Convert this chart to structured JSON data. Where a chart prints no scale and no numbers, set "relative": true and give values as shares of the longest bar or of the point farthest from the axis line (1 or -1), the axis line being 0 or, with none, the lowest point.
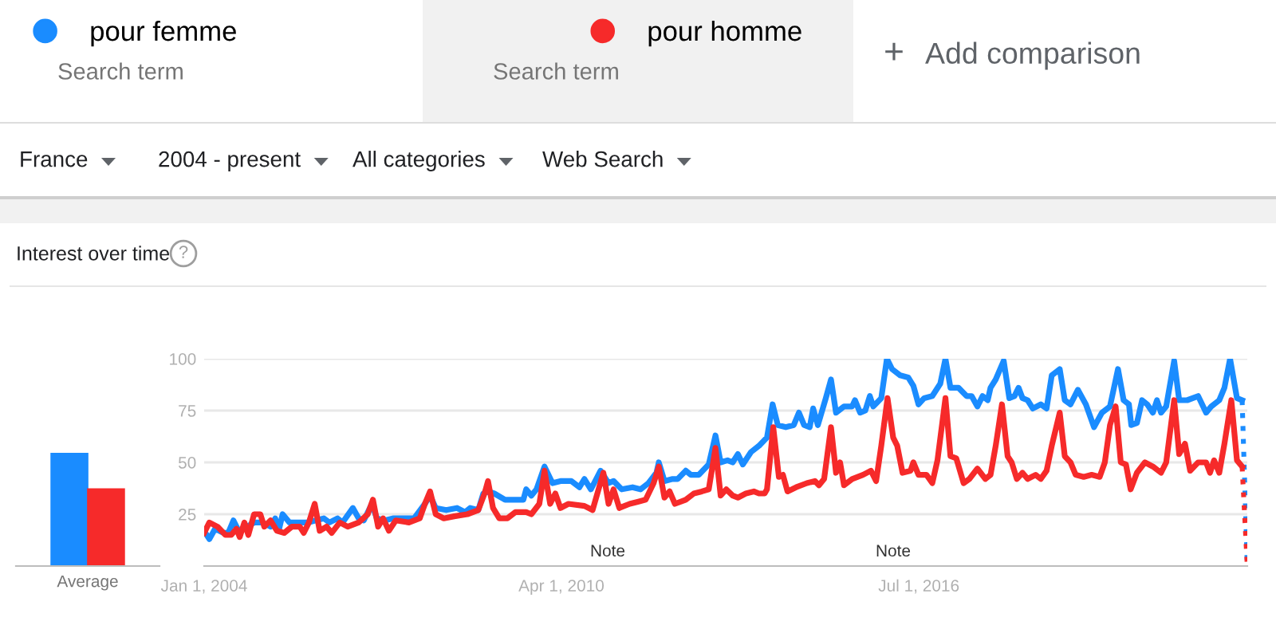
{
  "chart_data": [
    {
      "type": "other",
      "annotations": [
        "Search term",
        "Search term",
        "+",
        "Add comparison",
        "France",
        "2004 - present",
        "All categories",
        "Web Search",
        "?"
      ]
    },
    {
      "type": "bar",
      "categories": [
        "Average"
      ],
      "relative": true,
      "tick_labels": "x",
      "series": [
        {
          "color": "#1a8cff",
          "values": [
            1
          ]
        },
        {
          "color": "#f62a2a",
          "values": [
            0.68
          ]
        }
      ]
    },
    {
      "type": "line",
      "title": "Interest over time",
      "xlim": [
        "2004-01-01",
        "2022-03-30"
      ],
      "ylim": [
        0,
        100
      ],
      "yticks": [
        25,
        50,
        75,
        100
      ],
      "xticks": [
        {
          "value": "2004-01-01",
          "label": "Jan 1, 2004"
        },
        {
          "value": "2010-04-01",
          "label": "Apr 1, 2010"
        },
        {
          "value": "2016-07-01",
          "label": "Jul 1, 2016"
        }
      ],
      "grid": "y",
      "legend": "top",
      "line_style": "solid",
      "annotations": [
        "Note",
        "Note"
      ],
      "series": [
        {
          "name": "pour femme",
          "color": "#1a8cff",
          "x": [
            "2004-01-01",
            "2004-02-03",
            "2004-03-11",
            "2004-05-02",
            "2004-06-03",
            "2004-07-06",
            "2004-08-08",
            "2004-09-28",
            "2004-11-18",
            "2005-01-08",
            "2005-02-28",
            "2005-03-30",
            "2005-04-21",
            "2005-05-16",
            "2005-06-29",
            "2005-08-19",
            "2005-10-24",
            "2005-12-14",
            "2006-02-03",
            "2006-03-11",
            "2006-05-02",
            "2006-06-03",
            "2006-08-08",
            "2006-09-14",
            "2006-10-17",
            "2006-12-07",
            "2007-01-08",
            "2007-02-28",
            "2007-04-21",
            "2007-06-29",
            "2007-09-03",
            "2007-11-11",
            "2007-12-14",
            "2008-01-19",
            "2008-03-26",
            "2008-06-03",
            "2008-07-25",
            "2008-08-26",
            "2008-10-17",
            "2008-11-18",
            "2008-12-18",
            "2009-01-27",
            "2009-04-06",
            "2009-06-11",
            "2009-08-01",
            "2009-08-19",
            "2009-09-21",
            "2009-10-24",
            "2009-12-14",
            "2010-02-03",
            "2010-03-26",
            "2010-06-03",
            "2010-07-25",
            "2010-08-26",
            "2010-10-06",
            "2010-12-07",
            "2011-01-27",
            "2011-02-28",
            "2011-04-21",
            "2011-06-29",
            "2011-08-19",
            "2011-10-09",
            "2011-11-29",
            "2011-12-14",
            "2012-01-19",
            "2012-03-11",
            "2012-04-13",
            "2012-06-03",
            "2012-07-06",
            "2012-08-26",
            "2012-10-28",
            "2012-12-10",
            "2013-01-12",
            "2013-02-25",
            "2013-03-30",
            "2013-05-02",
            "2013-06-03",
            "2013-07-25",
            "2013-09-14",
            "2013-11-04",
            "2013-12-10",
            "2014-01-12",
            "2014-03-04",
            "2014-04-24",
            "2014-05-27",
            "2014-06-29",
            "2014-08-04",
            "2014-08-26",
            "2014-09-25",
            "2014-11-15",
            "2014-12-18",
            "2015-01-19",
            "2015-03-11",
            "2015-05-02",
            "2015-05-20",
            "2015-06-22",
            "2015-07-25",
            "2015-08-23",
            "2015-09-14",
            "2015-11-04",
            "2015-12-10",
            "2016-01-12",
            "2016-03-04",
            "2016-04-24",
            "2016-05-27",
            "2016-06-29",
            "2016-08-04",
            "2016-09-25",
            "2016-11-15",
            "2016-12-18",
            "2017-01-19",
            "2017-03-11",
            "2017-05-02",
            "2017-06-03",
            "2017-07-10",
            "2017-08-12",
            "2017-09-14",
            "2017-10-02",
            "2017-11-04",
            "2017-12-25",
            "2018-01-30",
            "2018-03-04",
            "2018-03-30",
            "2018-04-24",
            "2018-05-27",
            "2018-06-29",
            "2018-08-19",
            "2018-09-25",
            "2018-10-28",
            "2018-12-18",
            "2019-01-19",
            "2019-02-25",
            "2019-04-13",
            "2019-06-03",
            "2019-07-25",
            "2019-09-14",
            "2019-11-04",
            "2019-12-25",
            "2020-01-30",
            "2020-03-04",
            "2020-03-19",
            "2020-04-24",
            "2020-05-27",
            "2020-06-29",
            "2020-08-04",
            "2020-08-30",
            "2020-09-25",
            "2020-10-28",
            "2020-12-18",
            "2021-01-19",
            "2021-03-11",
            "2021-05-20",
            "2021-07-10",
            "2021-08-12",
            "2021-10-02",
            "2021-11-04",
            "2021-12-10",
            "2022-01-23",
            "2022-02-25"
          ],
          "values": [
            17,
            13,
            18,
            16,
            16,
            22,
            17,
            19,
            21,
            21,
            19,
            23,
            17,
            25,
            21,
            21,
            21,
            22,
            23,
            21,
            23,
            21,
            28,
            23,
            22,
            30,
            23,
            22,
            23,
            23,
            23,
            30,
            34,
            28,
            27,
            28,
            26,
            28,
            27,
            35,
            36,
            35,
            32,
            32,
            32,
            37,
            34,
            37,
            48,
            40,
            41,
            41,
            38,
            42,
            37,
            46,
            40,
            41,
            37,
            38,
            37,
            40,
            45,
            50,
            41,
            42,
            42,
            46,
            44,
            44,
            49,
            63,
            50,
            51,
            50,
            54,
            49,
            55,
            58,
            62,
            78,
            68,
            67,
            68,
            74,
            68,
            67,
            76,
            68,
            81,
            90,
            74,
            77,
            77,
            80,
            74,
            75,
            82,
            77,
            81,
            100,
            95,
            92,
            91,
            87,
            78,
            81,
            82,
            88,
            100,
            86,
            86,
            82,
            82,
            77,
            82,
            80,
            86,
            90,
            99,
            81,
            82,
            86,
            81,
            80,
            76,
            78,
            76,
            92,
            95,
            80,
            78,
            85,
            78,
            67,
            74,
            77,
            95,
            80,
            78,
            68,
            69,
            80,
            78,
            74,
            80,
            74,
            77,
            99,
            80,
            80,
            82,
            74,
            77,
            80,
            86,
            100,
            81,
            80
          ]
        },
        {
          "color": "#1a8cff",
          "line_style": "dotted",
          "x": [
            "2022-02-25",
            "2022-03-30"
          ],
          "values": [
            80,
            0
          ]
        },
        {
          "name": "pour homme",
          "color": "#f62a2a",
          "x": [
            "2004-01-01",
            "2004-02-03",
            "2004-03-26",
            "2004-05-16",
            "2004-06-22",
            "2004-07-25",
            "2004-08-15",
            "2004-09-14",
            "2004-10-09",
            "2004-11-15",
            "2004-12-25",
            "2005-01-19",
            "2005-02-28",
            "2005-04-10",
            "2005-05-27",
            "2005-07-14",
            "2005-09-03",
            "2005-09-28",
            "2005-10-31",
            "2005-12-07",
            "2006-01-08",
            "2006-02-21",
            "2006-03-26",
            "2006-05-16",
            "2006-07-06",
            "2006-09-14",
            "2006-11-11",
            "2006-12-14",
            "2007-01-16",
            "2007-02-17",
            "2007-03-26",
            "2007-05-09",
            "2007-08-01",
            "2007-10-09",
            "2007-11-11",
            "2007-12-14",
            "2008-01-19",
            "2008-03-11",
            "2008-05-16",
            "2008-08-08",
            "2008-10-17",
            "2008-11-26",
            "2008-12-18",
            "2009-01-19",
            "2009-02-28",
            "2009-04-21",
            "2009-06-11",
            "2009-08-19",
            "2009-09-21",
            "2009-11-11",
            "2009-12-14",
            "2010-01-19",
            "2010-02-21",
            "2010-03-26",
            "2010-05-16",
            "2010-08-26",
            "2010-10-17",
            "2010-12-25",
            "2011-01-27",
            "2011-02-28",
            "2011-04-06",
            "2011-06-11",
            "2011-08-01",
            "2011-09-21",
            "2011-11-11",
            "2011-12-14",
            "2012-01-19",
            "2012-02-21",
            "2012-03-26",
            "2012-06-03",
            "2012-07-25",
            "2012-09-14",
            "2012-10-28",
            "2012-12-10",
            "2013-01-12",
            "2013-02-17",
            "2013-03-30",
            "2013-05-02",
            "2013-06-22",
            "2013-08-12",
            "2013-09-14",
            "2013-10-20",
            "2013-11-04",
            "2013-12-14",
            "2014-01-19",
            "2014-02-14",
            "2014-03-15",
            "2014-05-09",
            "2014-07-17",
            "2014-09-06",
            "2014-10-02",
            "2014-11-04",
            "2014-12-18",
            "2015-01-19",
            "2015-02-14",
            "2015-03-11",
            "2015-05-02",
            "2015-07-10",
            "2015-08-30",
            "2015-10-02",
            "2015-11-04",
            "2015-12-14",
            "2016-01-19",
            "2016-02-14",
            "2016-03-19",
            "2016-05-09",
            "2016-05-27",
            "2016-06-29",
            "2016-08-19",
            "2016-09-25",
            "2016-10-28",
            "2016-12-18",
            "2017-01-19",
            "2017-02-25",
            "2017-04-13",
            "2017-05-20",
            "2017-07-10",
            "2017-08-30",
            "2017-10-02",
            "2017-11-04",
            "2017-12-14",
            "2018-01-19",
            "2018-02-14",
            "2018-03-19",
            "2018-04-24",
            "2018-05-27",
            "2018-07-17",
            "2018-08-19",
            "2018-09-25",
            "2018-10-28",
            "2018-12-18",
            "2019-01-19",
            "2019-02-25",
            "2019-03-30",
            "2019-05-20",
            "2019-07-10",
            "2019-08-30",
            "2019-10-02",
            "2019-11-04",
            "2019-12-10",
            "2020-01-12",
            "2020-02-14",
            "2020-03-15",
            "2020-04-24",
            "2020-06-14",
            "2020-08-04",
            "2020-09-25",
            "2020-10-28",
            "2020-12-18",
            "2021-01-19",
            "2021-02-25",
            "2021-03-30",
            "2021-05-20",
            "2021-07-10",
            "2021-08-04",
            "2021-08-30",
            "2021-10-02",
            "2021-11-04",
            "2021-12-18",
            "2022-01-23",
            "2022-02-25"
          ],
          "values": [
            16,
            21,
            19,
            15,
            15,
            18,
            14,
            21,
            15,
            25,
            25,
            19,
            22,
            17,
            16,
            19,
            19,
            16,
            21,
            30,
            17,
            19,
            16,
            21,
            19,
            21,
            25,
            32,
            19,
            23,
            17,
            22,
            21,
            23,
            30,
            36,
            25,
            23,
            24,
            25,
            27,
            35,
            41,
            28,
            23,
            23,
            26,
            26,
            25,
            30,
            46,
            30,
            35,
            28,
            30,
            29,
            27,
            45,
            30,
            37,
            28,
            30,
            31,
            32,
            40,
            48,
            33,
            36,
            30,
            32,
            35,
            36,
            37,
            57,
            34,
            37,
            34,
            33,
            35,
            36,
            35,
            35,
            37,
            67,
            43,
            44,
            36,
            38,
            40,
            41,
            39,
            42,
            67,
            45,
            50,
            39,
            42,
            44,
            46,
            41,
            58,
            81,
            62,
            58,
            45,
            46,
            50,
            44,
            44,
            40,
            51,
            81,
            53,
            52,
            40,
            42,
            47,
            42,
            44,
            58,
            78,
            53,
            50,
            42,
            45,
            42,
            44,
            42,
            46,
            58,
            74,
            53,
            50,
            44,
            43,
            44,
            43,
            50,
            68,
            77,
            50,
            49,
            37,
            45,
            50,
            48,
            45,
            50,
            80,
            54,
            59,
            46,
            50,
            50,
            45,
            51,
            45,
            59,
            80,
            51,
            48
          ]
        },
        {
          "color": "#f62a2a",
          "line_style": "dotted",
          "x": [
            "2022-02-25",
            "2022-03-30"
          ],
          "values": [
            48,
            0
          ]
        }
      ]
    }
  ]
}
